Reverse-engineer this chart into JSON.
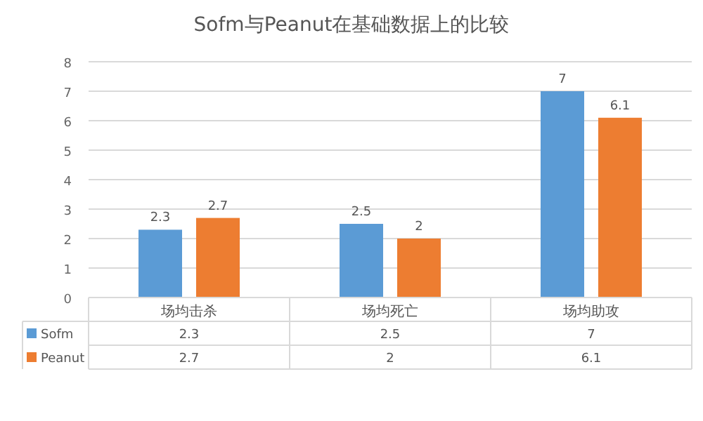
{
  "chart_data": {
    "type": "bar",
    "title": "Sofm与Peanut在基础数据上的比较",
    "categories": [
      "场均击杀",
      "场均死亡",
      "场均助攻"
    ],
    "series": [
      {
        "name": "Sofm",
        "color": "#5b9bd5",
        "values": [
          2.3,
          2.5,
          7
        ],
        "value_labels": [
          "2.3",
          "2.5",
          "7"
        ]
      },
      {
        "name": "Peanut",
        "color": "#ed7d31",
        "values": [
          2.7,
          2,
          6.1
        ],
        "value_labels": [
          "2.7",
          "2",
          "6.1"
        ]
      }
    ],
    "ylim": [
      0,
      8
    ],
    "yticks": [
      0,
      1,
      2,
      3,
      4,
      5,
      6,
      7,
      8
    ],
    "grid": "y",
    "legend": "bottom",
    "data_labels": true
  }
}
